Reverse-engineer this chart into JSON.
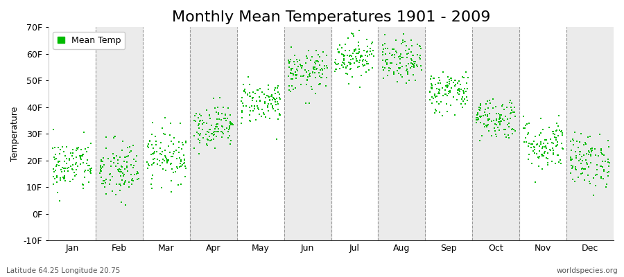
{
  "title": "Monthly Mean Temperatures 1901 - 2009",
  "ylabel": "Temperature",
  "ylim": [
    -10,
    70
  ],
  "yticks": [
    -10,
    0,
    10,
    20,
    30,
    40,
    50,
    60,
    70
  ],
  "ytick_labels": [
    "-10F",
    "0F",
    "10F",
    "20F",
    "30F",
    "40F",
    "50F",
    "60F",
    "70F"
  ],
  "months": [
    "Jan",
    "Feb",
    "Mar",
    "Apr",
    "May",
    "Jun",
    "Jul",
    "Aug",
    "Sep",
    "Oct",
    "Nov",
    "Dec"
  ],
  "dot_color": "#00bb00",
  "bg_color": "#ffffff",
  "band_color": "#ebebeb",
  "legend_label": "Mean Temp",
  "bottom_left": "Latitude 64.25 Longitude 20.75",
  "bottom_right": "worldspecies.org",
  "n_years": 109,
  "mean_temps_f": [
    18,
    16,
    22,
    33,
    42,
    53,
    59,
    57,
    46,
    36,
    26,
    20
  ],
  "std_temps_f": [
    5,
    6,
    5,
    4,
    4,
    4,
    4,
    4,
    4,
    4,
    5,
    5
  ],
  "title_fontsize": 16,
  "label_fontsize": 9,
  "tick_fontsize": 9,
  "dot_size": 3
}
